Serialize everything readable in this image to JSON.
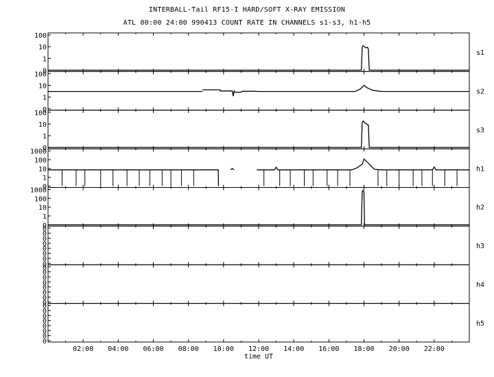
{
  "chart_data": {
    "type": "line",
    "title": "INTERBALL-Tail RF15-I HARD/SOFT X-RAY EMISSION",
    "subtitle": "ATL 00:00 24:00 990413  COUNT RATE IN CHANNELS s1-s3, h1-h5",
    "xlabel": "time UT",
    "x_unit": "hours UT",
    "xlim": [
      0,
      24
    ],
    "x_ticks": [
      "02:00",
      "04:00",
      "06:00",
      "08:00",
      "10:00",
      "12:00",
      "14:00",
      "16:00",
      "18:00",
      "20:00",
      "22:00"
    ],
    "yscale": "log",
    "grid": false,
    "panels": [
      {
        "name": "s1",
        "y_ticks": [
          "100",
          "10",
          "1",
          "0"
        ],
        "segments": [
          {
            "x": [
              0,
              17.85,
              17.9,
              17.95,
              18.0,
              18.1,
              18.2,
              18.25,
              18.3,
              24
            ],
            "y": [
              0,
              0,
              10,
              12,
              11,
              8,
              9,
              6,
              0,
              0
            ]
          }
        ]
      },
      {
        "name": "s2",
        "y_ticks": [
          "100",
          "10",
          "1",
          "0"
        ],
        "segments": [
          {
            "x": [
              0,
              8.8
            ],
            "y": [
              3,
              3
            ]
          },
          {
            "x": [
              8.8,
              9.8,
              9.81,
              10.5,
              10.55,
              10.6,
              10.65,
              11.0,
              11.05,
              11.9
            ],
            "y": [
              4.2,
              4.2,
              3.3,
              3.3,
              1.2,
              3.3,
              2.6,
              2.6,
              3.1,
              3.1
            ]
          },
          {
            "x": [
              11.9,
              17.5,
              17.8,
              18.0,
              18.2,
              18.5,
              19.0,
              24
            ],
            "y": [
              3,
              3,
              5,
              10,
              6,
              3.8,
              3,
              3
            ]
          }
        ]
      },
      {
        "name": "s3",
        "y_ticks": [
          "100",
          "10",
          "1",
          "0"
        ],
        "segments": [
          {
            "x": [
              0,
              17.85,
              17.9,
              17.95,
              18.0,
              18.1,
              18.2,
              18.25,
              18.3,
              24
            ],
            "y": [
              0,
              0,
              12,
              18,
              15,
              11,
              9,
              8,
              0,
              0
            ]
          }
        ]
      },
      {
        "name": "h1",
        "y_ticks": [
          "1000",
          "100",
          "10",
          "1",
          "0"
        ],
        "drops_to_zero_at": [
          0.8,
          1.6,
          2.1,
          3.0,
          3.7,
          4.5,
          5.2,
          5.8,
          6.5,
          7.0,
          7.6,
          8.3,
          12.3,
          13.2,
          13.8,
          14.6,
          15.1,
          15.9,
          16.5,
          17.2,
          18.8,
          19.3,
          20.0,
          20.8,
          21.3,
          21.9,
          22.6,
          23.3
        ],
        "segments": [
          {
            "x": [
              0,
              8.8
            ],
            "y": [
              7,
              7
            ]
          },
          {
            "x": [
              8.8,
              9.7,
              9.71
            ],
            "y": [
              7,
              7,
              0
            ]
          },
          {
            "x": [
              10.4,
              10.5,
              10.6
            ],
            "y": [
              7,
              10,
              7
            ]
          },
          {
            "x": [
              11.9,
              12.9,
              13.0,
              13.1,
              14.0,
              17.3,
              17.6,
              17.9,
              18.0,
              18.2,
              18.4,
              18.6,
              19.0,
              21.9,
              22.0,
              22.1,
              24
            ],
            "y": [
              7,
              7,
              14,
              7,
              7,
              7,
              12,
              30,
              120,
              50,
              20,
              8,
              7,
              7,
              15,
              7,
              7
            ]
          }
        ]
      },
      {
        "name": "h2",
        "y_ticks": [
          "1000",
          "100",
          "10",
          "1",
          "0"
        ],
        "segments": [
          {
            "x": [
              0,
              17.85,
              17.9,
              17.95,
              18.0,
              18.03,
              24
            ],
            "y": [
              0,
              0,
              600,
              800,
              500,
              0,
              0
            ]
          }
        ]
      },
      {
        "name": "h3",
        "y_ticks": [
          "0",
          "0",
          "0",
          "0",
          "0",
          "0",
          "0",
          "0"
        ],
        "segments": []
      },
      {
        "name": "h4",
        "y_ticks": [
          "0",
          "0",
          "0",
          "0",
          "0",
          "0",
          "0",
          "0"
        ],
        "segments": []
      },
      {
        "name": "h5",
        "y_ticks": [
          "0",
          "0",
          "0",
          "0",
          "0",
          "0",
          "0",
          "0"
        ],
        "segments": []
      }
    ]
  }
}
